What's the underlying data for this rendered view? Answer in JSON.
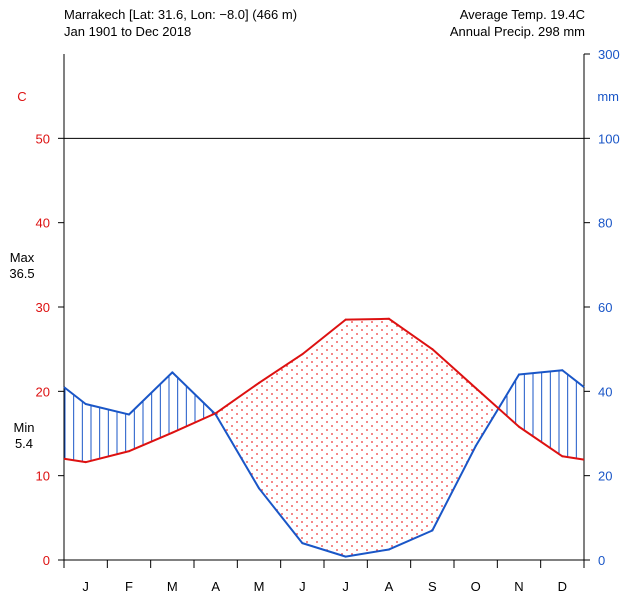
{
  "header": {
    "location": "Marrakech [Lat: 31.6, Lon: −8.0] (466 m)",
    "period": "Jan 1901 to Dec 2018",
    "avg_temp": "Average Temp. 19.4C",
    "annual_precip": "Annual Precip. 298 mm"
  },
  "side_labels": {
    "max_label": "Max",
    "max_value": "36.5",
    "min_label": "Min",
    "min_value": "5.4"
  },
  "chart_data": {
    "type": "line",
    "categories": [
      "J",
      "F",
      "M",
      "A",
      "M",
      "J",
      "J",
      "A",
      "S",
      "O",
      "N",
      "D"
    ],
    "series": [
      {
        "axis": "left",
        "color": "#dd1111",
        "values": [
          11.6,
          12.9,
          15.1,
          17.4,
          21.0,
          24.4,
          28.5,
          28.6,
          25.0,
          20.4,
          15.8,
          12.3
        ]
      },
      {
        "axis": "right",
        "color": "#1a56c7",
        "values": [
          37.0,
          34.5,
          44.5,
          34.5,
          17.0,
          4.0,
          0.8,
          2.5,
          7.0,
          27.0,
          44.0,
          45.0
        ]
      }
    ],
    "edge_values": {
      "temp_start": 12.0,
      "temp_end": 11.9,
      "precip_start": 41.0,
      "precip_end": 41.0
    },
    "left_axis": {
      "label": "C",
      "ticks": [
        0,
        10,
        20,
        30,
        40,
        50
      ],
      "range": [
        0,
        60
      ],
      "color": "#dd1111"
    },
    "right_axis": {
      "label": "mm",
      "ticks": [
        0,
        20,
        40,
        60,
        80,
        100,
        300
      ],
      "color": "#1a56c7"
    },
    "reference_line_value": 50
  }
}
